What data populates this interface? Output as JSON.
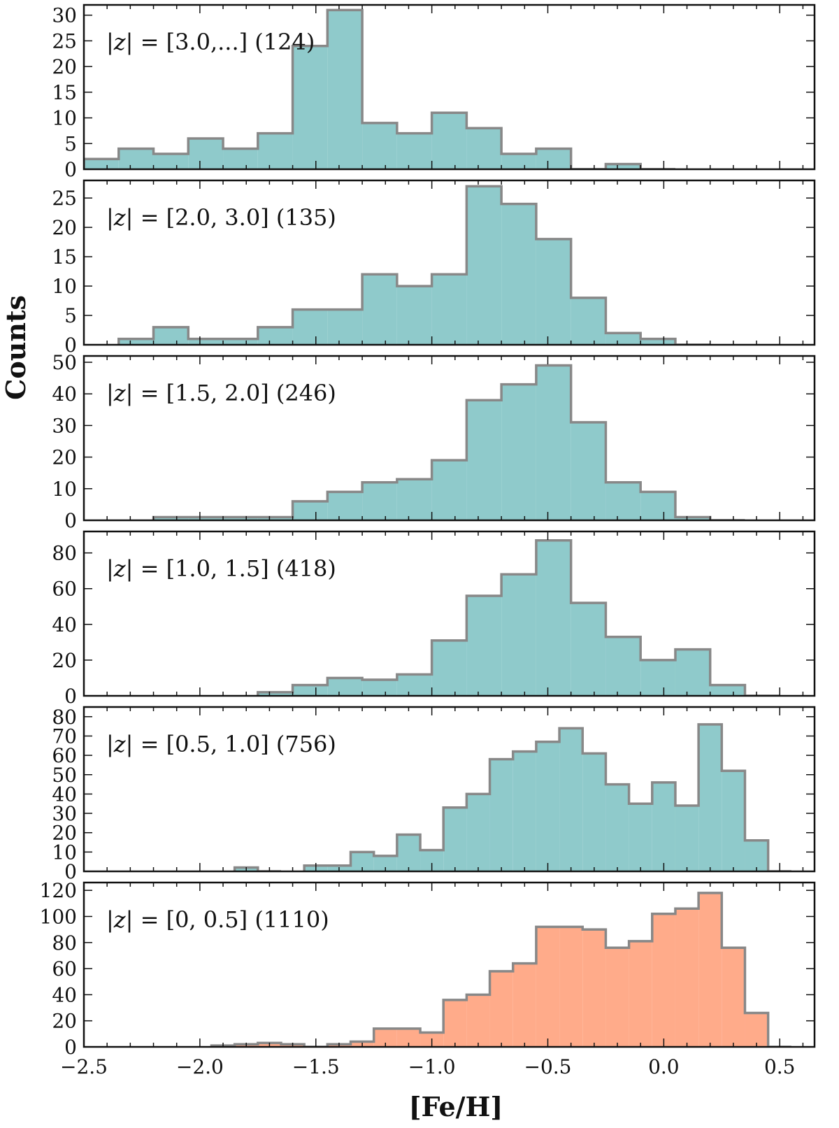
{
  "chart_data": {
    "type": "histogram-stack",
    "xlabel": "[Fe/H]",
    "ylabel": "Counts",
    "xlim": [
      -2.5,
      0.65
    ],
    "x_ticks": [
      -2.5,
      -2.0,
      -1.5,
      -1.0,
      -0.5,
      0.0,
      0.5
    ],
    "x_tick_labels": [
      "−2.5",
      "−2.0",
      "−1.5",
      "−1.0",
      "−0.5",
      "0.0",
      "0.5"
    ],
    "panels": [
      {
        "label_z": "|z|",
        "label_text": " = [3.0,...] (124)",
        "fill": "#8fcacb",
        "edge": "#888888",
        "ylim": [
          0,
          32
        ],
        "y_ticks": [
          0,
          5,
          10,
          15,
          20,
          25,
          30
        ],
        "edges": [
          -2.5,
          -2.35,
          -2.2,
          -2.05,
          -1.9,
          -1.75,
          -1.6,
          -1.45,
          -1.3,
          -1.15,
          -1.0,
          -0.85,
          -0.7,
          -0.55,
          -0.4,
          -0.25,
          -0.1,
          0.05,
          0.2
        ],
        "counts": [
          2,
          4,
          3,
          6,
          4,
          7,
          24,
          31,
          9,
          7,
          11,
          8,
          3,
          4,
          0,
          1,
          0,
          0
        ]
      },
      {
        "label_z": "|z|",
        "label_text": " = [2.0, 3.0] (135)",
        "fill": "#8fcacb",
        "edge": "#888888",
        "ylim": [
          0,
          28
        ],
        "y_ticks": [
          0,
          5,
          10,
          15,
          20,
          25
        ],
        "edges": [
          -2.35,
          -2.2,
          -2.05,
          -1.9,
          -1.75,
          -1.6,
          -1.45,
          -1.3,
          -1.15,
          -1.0,
          -0.85,
          -0.7,
          -0.55,
          -0.4,
          -0.25,
          -0.1,
          0.05,
          0.2,
          0.35
        ],
        "counts": [
          1,
          3,
          1,
          1,
          3,
          6,
          6,
          12,
          10,
          12,
          27,
          24,
          18,
          8,
          2,
          1,
          0,
          0
        ]
      },
      {
        "label_z": "|z|",
        "label_text": " = [1.5, 2.0] (246)",
        "fill": "#8fcacb",
        "edge": "#888888",
        "ylim": [
          0,
          52
        ],
        "y_ticks": [
          0,
          10,
          20,
          30,
          40,
          50
        ],
        "edges": [
          -2.2,
          -2.05,
          -1.9,
          -1.75,
          -1.6,
          -1.45,
          -1.3,
          -1.15,
          -1.0,
          -0.85,
          -0.7,
          -0.55,
          -0.4,
          -0.25,
          -0.1,
          0.05,
          0.2,
          0.35,
          0.5
        ],
        "counts": [
          1,
          1,
          1,
          1,
          6,
          9,
          12,
          13,
          19,
          38,
          43,
          49,
          31,
          12,
          9,
          1,
          0,
          0
        ]
      },
      {
        "label_z": "|z|",
        "label_text": " = [1.0, 1.5] (418)",
        "fill": "#8fcacb",
        "edge": "#888888",
        "ylim": [
          0,
          92
        ],
        "y_ticks": [
          0,
          20,
          40,
          60,
          80
        ],
        "edges": [
          -1.75,
          -1.6,
          -1.45,
          -1.3,
          -1.15,
          -1.0,
          -0.85,
          -0.7,
          -0.55,
          -0.4,
          -0.25,
          -0.1,
          0.05,
          0.2,
          0.35,
          0.5,
          0.65
        ],
        "counts": [
          2,
          6,
          10,
          9,
          12,
          31,
          56,
          68,
          87,
          52,
          33,
          20,
          26,
          6,
          0,
          0
        ]
      },
      {
        "label_z": "|z|",
        "label_text": " = [0.5, 1.0] (756)",
        "fill": "#8fcacb",
        "edge": "#888888",
        "ylim": [
          0,
          85
        ],
        "y_ticks": [
          0,
          10,
          20,
          30,
          40,
          50,
          60,
          70,
          80
        ],
        "edges": [
          -1.85,
          -1.75,
          -1.65,
          -1.55,
          -1.45,
          -1.35,
          -1.25,
          -1.15,
          -1.05,
          -0.95,
          -0.85,
          -0.75,
          -0.65,
          -0.55,
          -0.45,
          -0.35,
          -0.25,
          -0.15,
          -0.05,
          0.05,
          0.15,
          0.25,
          0.35,
          0.45,
          0.55,
          0.65
        ],
        "counts": [
          2,
          0,
          0,
          3,
          3,
          10,
          8,
          19,
          11,
          33,
          40,
          58,
          62,
          67,
          74,
          61,
          45,
          35,
          46,
          34,
          76,
          52,
          16,
          0,
          0
        ]
      },
      {
        "label_z": "|z|",
        "label_text": " = [0, 0.5] (1110)",
        "fill": "#ffab8a",
        "edge": "#888888",
        "ylim": [
          0,
          126
        ],
        "y_ticks": [
          0,
          20,
          40,
          60,
          80,
          100,
          120
        ],
        "edges": [
          -1.95,
          -1.85,
          -1.75,
          -1.65,
          -1.55,
          -1.45,
          -1.35,
          -1.25,
          -1.15,
          -1.05,
          -0.95,
          -0.85,
          -0.75,
          -0.65,
          -0.55,
          -0.45,
          -0.35,
          -0.25,
          -0.15,
          -0.05,
          0.05,
          0.15,
          0.25,
          0.35,
          0.45,
          0.55,
          0.65
        ],
        "counts": [
          1,
          2,
          3,
          2,
          0,
          2,
          4,
          14,
          14,
          11,
          36,
          40,
          58,
          64,
          92,
          92,
          90,
          76,
          81,
          102,
          106,
          118,
          76,
          26,
          0,
          0
        ]
      }
    ]
  }
}
